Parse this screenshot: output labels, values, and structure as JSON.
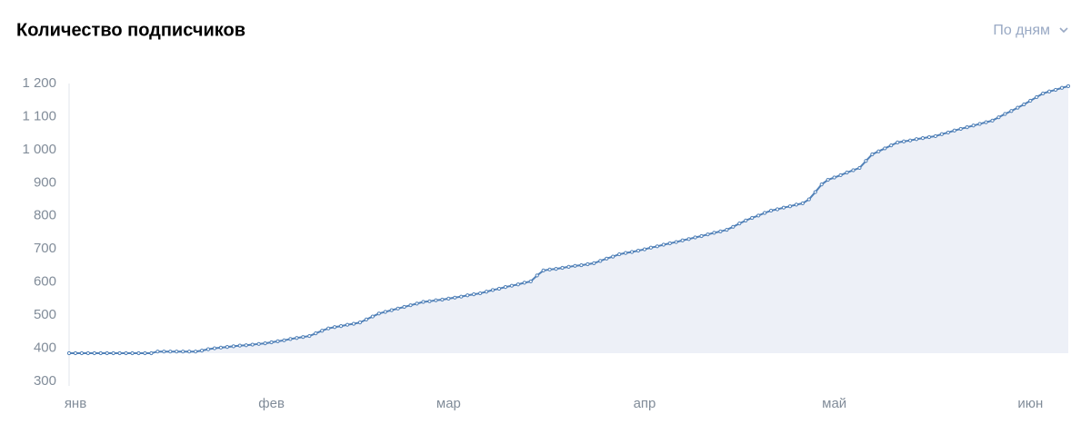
{
  "controls": {
    "period": "По дням"
  },
  "chart_data": {
    "type": "line",
    "title": "Количество подписчиков",
    "categories": [
      "янв",
      null,
      null,
      null,
      null,
      null,
      null,
      null,
      null,
      null,
      null,
      null,
      null,
      null,
      null,
      null,
      null,
      null,
      null,
      null,
      null,
      null,
      null,
      null,
      null,
      null,
      null,
      null,
      null,
      null,
      null,
      "фев",
      null,
      null,
      null,
      null,
      null,
      null,
      null,
      null,
      null,
      null,
      null,
      null,
      null,
      null,
      null,
      null,
      null,
      null,
      null,
      null,
      null,
      null,
      null,
      null,
      null,
      null,
      null,
      "мар",
      null,
      null,
      null,
      null,
      null,
      null,
      null,
      null,
      null,
      null,
      null,
      null,
      null,
      null,
      null,
      null,
      null,
      null,
      null,
      null,
      null,
      null,
      null,
      null,
      null,
      null,
      null,
      null,
      null,
      null,
      "апр",
      null,
      null,
      null,
      null,
      null,
      null,
      null,
      null,
      null,
      null,
      null,
      null,
      null,
      null,
      null,
      null,
      null,
      null,
      null,
      null,
      null,
      null,
      null,
      null,
      null,
      null,
      null,
      null,
      null,
      "май",
      null,
      null,
      null,
      null,
      null,
      null,
      null,
      null,
      null,
      null,
      null,
      null,
      null,
      null,
      null,
      null,
      null,
      null,
      null,
      null,
      null,
      null,
      null,
      null,
      null,
      null,
      null,
      null,
      null,
      null,
      "июн",
      null,
      null,
      null,
      null,
      null,
      null,
      null
    ],
    "series": [
      {
        "color": "#5181b8",
        "values": [
          385,
          385,
          385,
          385,
          385,
          385,
          385,
          385,
          385,
          385,
          385,
          385,
          385,
          385,
          390,
          390,
          390,
          390,
          390,
          390,
          390,
          393,
          397,
          400,
          402,
          404,
          406,
          408,
          409,
          411,
          413,
          415,
          418,
          421,
          424,
          428,
          431,
          434,
          437,
          445,
          453,
          460,
          464,
          467,
          471,
          474,
          478,
          487,
          496,
          505,
          510,
          515,
          520,
          525,
          530,
          535,
          540,
          542,
          545,
          547,
          550,
          553,
          556,
          560,
          563,
          566,
          571,
          576,
          580,
          585,
          589,
          593,
          598,
          602,
          620,
          635,
          638,
          640,
          643,
          646,
          649,
          651,
          654,
          657,
          664,
          671,
          677,
          684,
          688,
          691,
          695,
          699,
          704,
          708,
          713,
          717,
          721,
          726,
          730,
          735,
          739,
          744,
          749,
          753,
          758,
          767,
          777,
          786,
          794,
          801,
          809,
          816,
          820,
          825,
          829,
          834,
          838,
          850,
          872,
          895,
          909,
          916,
          923,
          931,
          938,
          945,
          966,
          986,
          995,
          1004,
          1013,
          1022,
          1025,
          1028,
          1032,
          1035,
          1038,
          1041,
          1047,
          1052,
          1058,
          1063,
          1068,
          1073,
          1078,
          1083,
          1088,
          1098,
          1108,
          1117,
          1127,
          1137,
          1148,
          1159,
          1170,
          1176,
          1181,
          1187,
          1192
        ]
      }
    ],
    "ylim": [
      300,
      1200
    ],
    "yticks": [
      300,
      400,
      500,
      600,
      700,
      800,
      900,
      {
        "value": 1000,
        "label": "1 000"
      },
      {
        "value": 1100,
        "label": "1 100"
      },
      {
        "value": 1200,
        "label": "1 200"
      }
    ],
    "grid": false,
    "area_color": "#edf0f7"
  }
}
